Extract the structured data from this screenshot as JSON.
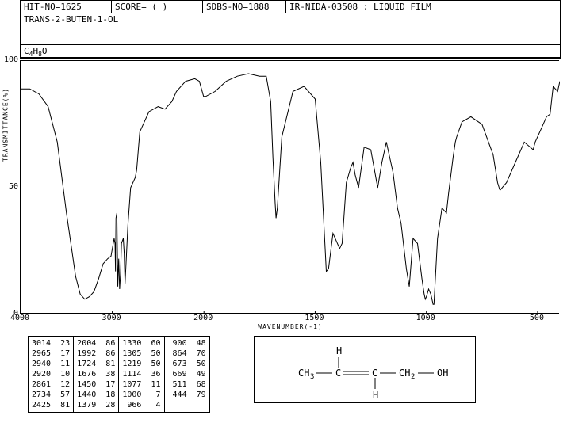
{
  "header": {
    "hit_no": "HIT-NO=1625",
    "score": "SCORE=   (   )",
    "sdbs_no": "SDBS-NO=1888",
    "source": "IR-NIDA-03508  : LIQUID FILM"
  },
  "compound_name": "TRANS-2-BUTEN-1-OL",
  "formula_parts": [
    "C",
    "4",
    "H",
    "8",
    "O"
  ],
  "chart": {
    "type": "line",
    "xlabel": "WAVENUMBER(-1)",
    "ylabel": "TRANSMITTANCE(%)",
    "xlim": [
      4000,
      400
    ],
    "ylim": [
      0,
      100
    ],
    "xticks": [
      4000,
      3000,
      2000,
      1500,
      1000,
      500
    ],
    "yticks": [
      0,
      50,
      100
    ],
    "line_color": "#000000",
    "background_color": "#ffffff",
    "spectrum": [
      [
        4000,
        89
      ],
      [
        3900,
        89
      ],
      [
        3800,
        87
      ],
      [
        3700,
        82
      ],
      [
        3600,
        68
      ],
      [
        3500,
        40
      ],
      [
        3400,
        15
      ],
      [
        3350,
        8
      ],
      [
        3300,
        6
      ],
      [
        3250,
        7
      ],
      [
        3200,
        9
      ],
      [
        3150,
        14
      ],
      [
        3100,
        20
      ],
      [
        3050,
        22
      ],
      [
        3014,
        23
      ],
      [
        2980,
        30
      ],
      [
        2970,
        28
      ],
      [
        2965,
        17
      ],
      [
        2960,
        38
      ],
      [
        2950,
        40
      ],
      [
        2940,
        11
      ],
      [
        2930,
        22
      ],
      [
        2920,
        10
      ],
      [
        2910,
        16
      ],
      [
        2900,
        28
      ],
      [
        2880,
        30
      ],
      [
        2870,
        24
      ],
      [
        2861,
        12
      ],
      [
        2850,
        20
      ],
      [
        2830,
        35
      ],
      [
        2800,
        50
      ],
      [
        2750,
        54
      ],
      [
        2734,
        57
      ],
      [
        2700,
        72
      ],
      [
        2600,
        80
      ],
      [
        2500,
        82
      ],
      [
        2425,
        81
      ],
      [
        2350,
        84
      ],
      [
        2300,
        88
      ],
      [
        2200,
        92
      ],
      [
        2100,
        93
      ],
      [
        2050,
        92
      ],
      [
        2004,
        86
      ],
      [
        1992,
        86
      ],
      [
        1950,
        88
      ],
      [
        1900,
        92
      ],
      [
        1850,
        94
      ],
      [
        1800,
        95
      ],
      [
        1750,
        94
      ],
      [
        1720,
        94
      ],
      [
        1700,
        84
      ],
      [
        1690,
        62
      ],
      [
        1680,
        44
      ],
      [
        1676,
        38
      ],
      [
        1670,
        42
      ],
      [
        1650,
        70
      ],
      [
        1600,
        88
      ],
      [
        1550,
        90
      ],
      [
        1500,
        85
      ],
      [
        1475,
        60
      ],
      [
        1450,
        17
      ],
      [
        1440,
        18
      ],
      [
        1420,
        32
      ],
      [
        1400,
        28
      ],
      [
        1390,
        26
      ],
      [
        1379,
        28
      ],
      [
        1360,
        52
      ],
      [
        1340,
        58
      ],
      [
        1330,
        60
      ],
      [
        1320,
        55
      ],
      [
        1305,
        50
      ],
      [
        1280,
        66
      ],
      [
        1250,
        65
      ],
      [
        1219,
        50
      ],
      [
        1200,
        60
      ],
      [
        1180,
        68
      ],
      [
        1150,
        56
      ],
      [
        1130,
        42
      ],
      [
        1114,
        36
      ],
      [
        1090,
        18
      ],
      [
        1077,
        11
      ],
      [
        1060,
        30
      ],
      [
        1040,
        28
      ],
      [
        1020,
        14
      ],
      [
        1010,
        8
      ],
      [
        1005,
        6
      ],
      [
        1000,
        7
      ],
      [
        990,
        10
      ],
      [
        980,
        8
      ],
      [
        970,
        4
      ],
      [
        966,
        4
      ],
      [
        950,
        30
      ],
      [
        930,
        42
      ],
      [
        910,
        40
      ],
      [
        900,
        48
      ],
      [
        880,
        62
      ],
      [
        870,
        68
      ],
      [
        864,
        70
      ],
      [
        840,
        76
      ],
      [
        800,
        78
      ],
      [
        750,
        75
      ],
      [
        700,
        63
      ],
      [
        680,
        52
      ],
      [
        673,
        50
      ],
      [
        669,
        49
      ],
      [
        640,
        52
      ],
      [
        600,
        60
      ],
      [
        560,
        68
      ],
      [
        520,
        65
      ],
      [
        511,
        68
      ],
      [
        480,
        74
      ],
      [
        460,
        78
      ],
      [
        444,
        79
      ],
      [
        430,
        90
      ],
      [
        410,
        88
      ],
      [
        400,
        92
      ]
    ]
  },
  "peak_table": [
    [
      [
        "3014",
        "23"
      ],
      [
        "2965",
        "17"
      ],
      [
        "2940",
        "11"
      ],
      [
        "2920",
        "10"
      ],
      [
        "2861",
        "12"
      ],
      [
        "2734",
        "57"
      ],
      [
        "2425",
        "81"
      ]
    ],
    [
      [
        "2004",
        "86"
      ],
      [
        "1992",
        "86"
      ],
      [
        "1724",
        "81"
      ],
      [
        "1676",
        "38"
      ],
      [
        "1450",
        "17"
      ],
      [
        "1440",
        "18"
      ],
      [
        "1379",
        "28"
      ]
    ],
    [
      [
        "1330",
        "60"
      ],
      [
        "1305",
        "50"
      ],
      [
        "1219",
        "50"
      ],
      [
        "1114",
        "36"
      ],
      [
        "1077",
        "11"
      ],
      [
        "1000",
        " 7"
      ],
      [
        " 966",
        " 4"
      ]
    ],
    [
      [
        " 900",
        "48"
      ],
      [
        " 864",
        "70"
      ],
      [
        " 673",
        "50"
      ],
      [
        " 669",
        "49"
      ],
      [
        " 511",
        "68"
      ],
      [
        " 444",
        "79"
      ],
      [
        "",
        ""
      ]
    ]
  ],
  "structure": {
    "labels": {
      "ch3": "CH",
      "ch3_sub": "3",
      "c1": "C",
      "c2": "C",
      "ch2": "CH",
      "ch2_sub": "2",
      "oh": "OH",
      "h1": "H",
      "h2": "H"
    }
  }
}
